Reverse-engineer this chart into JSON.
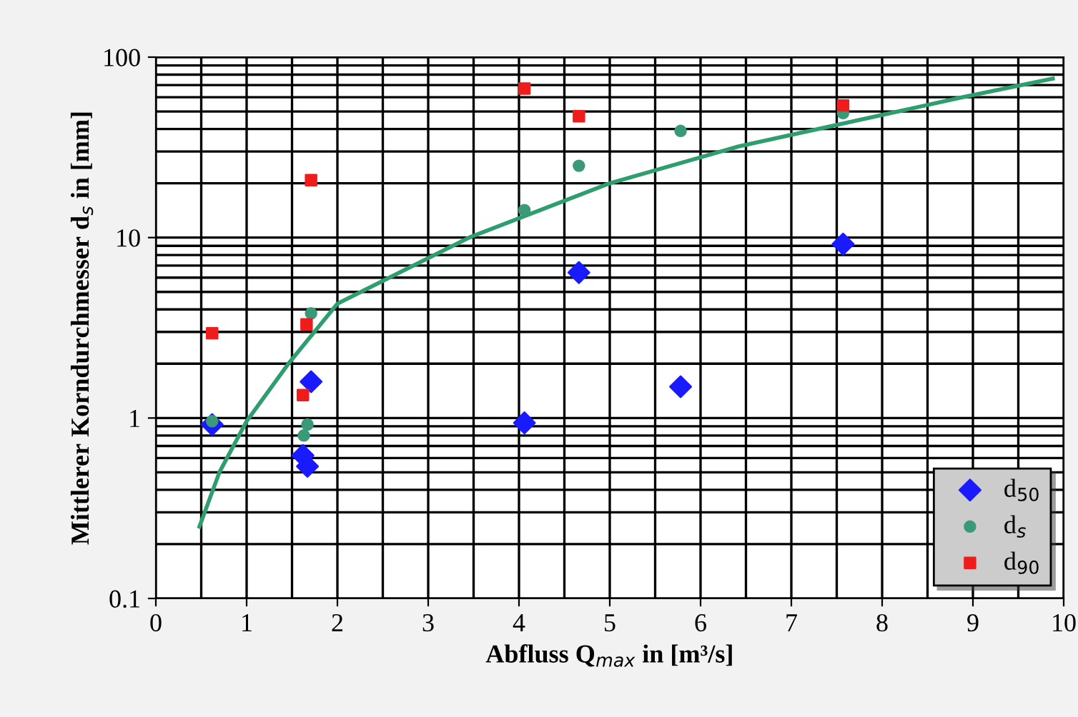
{
  "chart_data": {
    "type": "scatter",
    "xlabel": "Abfluss Q$_{max}$ in [m³/s]",
    "ylabel": "Mittlerer Korndurchmesser d$_{s}$ in [mm]",
    "log": "y",
    "xlim": [
      0,
      10
    ],
    "xticks": [
      0,
      1,
      2,
      3,
      4,
      5,
      6,
      7,
      8,
      9,
      10
    ],
    "ylim": [
      0.1,
      100
    ],
    "yticks": [
      0.1,
      1,
      10,
      100
    ],
    "grid": true,
    "legend": "bottom right",
    "series": [
      {
        "name": "d$_{50}$",
        "color": "#1a1aff",
        "marker": "diamond",
        "x": [
          0.62,
          1.71,
          1.62,
          1.67,
          4.06,
          4.66,
          5.78,
          7.57
        ],
        "values": [
          0.92,
          1.59,
          0.62,
          0.54,
          0.94,
          6.4,
          1.49,
          9.2
        ]
      },
      {
        "name": "d$_{s}$",
        "color": "#3a9a78",
        "marker": "circle",
        "x": [
          0.62,
          1.71,
          1.67,
          1.63,
          4.06,
          4.66,
          5.78,
          7.57
        ],
        "values": [
          0.96,
          3.8,
          0.92,
          0.8,
          14.2,
          25,
          39,
          49
        ]
      },
      {
        "name": "d$_{90}$",
        "color": "#f01c1c",
        "marker": "square",
        "x": [
          0.62,
          1.71,
          1.66,
          1.62,
          4.06,
          4.66,
          7.57
        ],
        "values": [
          2.95,
          20.8,
          3.3,
          1.34,
          67,
          47,
          54
        ]
      },
      {
        "type": "line",
        "color": "#2e9e6e",
        "marker": "none",
        "x": [
          0.48,
          0.7,
          1.0,
          1.46,
          2.0,
          3.45,
          5.0,
          6.42,
          8.89,
          9.88
        ],
        "values": [
          0.25,
          0.5,
          0.96,
          2.0,
          4.3,
          10,
          20,
          32,
          60,
          76
        ]
      }
    ]
  }
}
